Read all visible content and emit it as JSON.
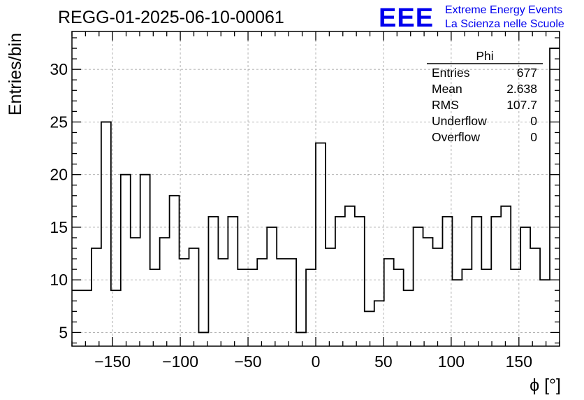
{
  "chart_data": {
    "type": "histogram",
    "title": "REGG-01-2025-06-10-00061",
    "xlabel": "ϕ [°]",
    "ylabel": "Entries/bin",
    "xlim": [
      -180,
      180
    ],
    "ylim": [
      3.7,
      33.6
    ],
    "bin_edges_start": -180,
    "bin_width": 7.2,
    "values": [
      9,
      9,
      13,
      25,
      9,
      20,
      14,
      20,
      11,
      14,
      18,
      12,
      13,
      5,
      16,
      12,
      16,
      11,
      11,
      12,
      15,
      12,
      12,
      5,
      11,
      23,
      13,
      16,
      17,
      16,
      7,
      8,
      12,
      11,
      9,
      15,
      14,
      13,
      16,
      10,
      11,
      16,
      11,
      16,
      17,
      11,
      15,
      13,
      10,
      32
    ],
    "x_ticks": [
      -150,
      -100,
      -50,
      0,
      50,
      100,
      150
    ],
    "x_tick_labels": [
      "−150",
      "−100",
      "−50",
      "0",
      "50",
      "100",
      "150"
    ],
    "y_ticks": [
      5,
      10,
      15,
      20,
      25,
      30
    ],
    "y_tick_labels": [
      "5",
      "10",
      "15",
      "20",
      "25",
      "30"
    ],
    "grid": true,
    "stats_box": {
      "name": "Phi",
      "rows": [
        {
          "label": "Entries",
          "value": "677"
        },
        {
          "label": "Mean",
          "value": "2.638"
        },
        {
          "label": "RMS",
          "value": "107.7"
        },
        {
          "label": "Underflow",
          "value": "0"
        },
        {
          "label": "Overflow",
          "value": "0"
        }
      ]
    }
  },
  "logo": {
    "mark": "EEE",
    "line1": "Extreme Energy Events",
    "line2": "La Scienza nelle Scuole"
  }
}
